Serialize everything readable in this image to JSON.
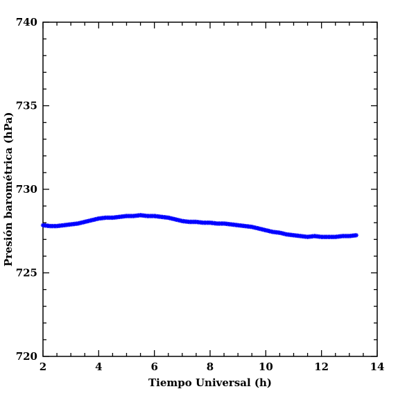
{
  "chart_data": {
    "type": "scatter",
    "title": "",
    "xlabel": "Tiempo Universal (h)",
    "ylabel": "Presión barométrica (hPa)",
    "xlim": [
      2,
      14
    ],
    "ylim": [
      720,
      740
    ],
    "x_ticks": [
      2,
      4,
      6,
      8,
      10,
      12,
      14
    ],
    "y_ticks": [
      720,
      725,
      730,
      735,
      740
    ],
    "grid": false,
    "legend": "none",
    "marker": "star",
    "color": "#0000ff",
    "series": [
      {
        "x": [
          2.0,
          2.25,
          2.5,
          2.75,
          3.0,
          3.25,
          3.5,
          3.75,
          4.0,
          4.25,
          4.5,
          4.75,
          5.0,
          5.25,
          5.5,
          5.75,
          6.0,
          6.25,
          6.5,
          6.75,
          7.0,
          7.25,
          7.5,
          7.75,
          8.0,
          8.25,
          8.5,
          8.75,
          9.0,
          9.25,
          9.5,
          9.75,
          10.0,
          10.25,
          10.5,
          10.75,
          11.0,
          11.25,
          11.5,
          11.75,
          12.0,
          12.25,
          12.5,
          12.75,
          13.0,
          13.25
        ],
        "y": [
          727.85,
          727.8,
          727.8,
          727.85,
          727.9,
          727.95,
          728.05,
          728.15,
          728.25,
          728.3,
          728.3,
          728.35,
          728.4,
          728.4,
          728.45,
          728.4,
          728.4,
          728.35,
          728.3,
          728.2,
          728.1,
          728.05,
          728.05,
          728.0,
          728.0,
          727.95,
          727.95,
          727.9,
          727.85,
          727.8,
          727.75,
          727.65,
          727.55,
          727.45,
          727.4,
          727.3,
          727.25,
          727.2,
          727.15,
          727.2,
          727.15,
          727.15,
          727.15,
          727.2,
          727.2,
          727.25
        ]
      }
    ]
  }
}
